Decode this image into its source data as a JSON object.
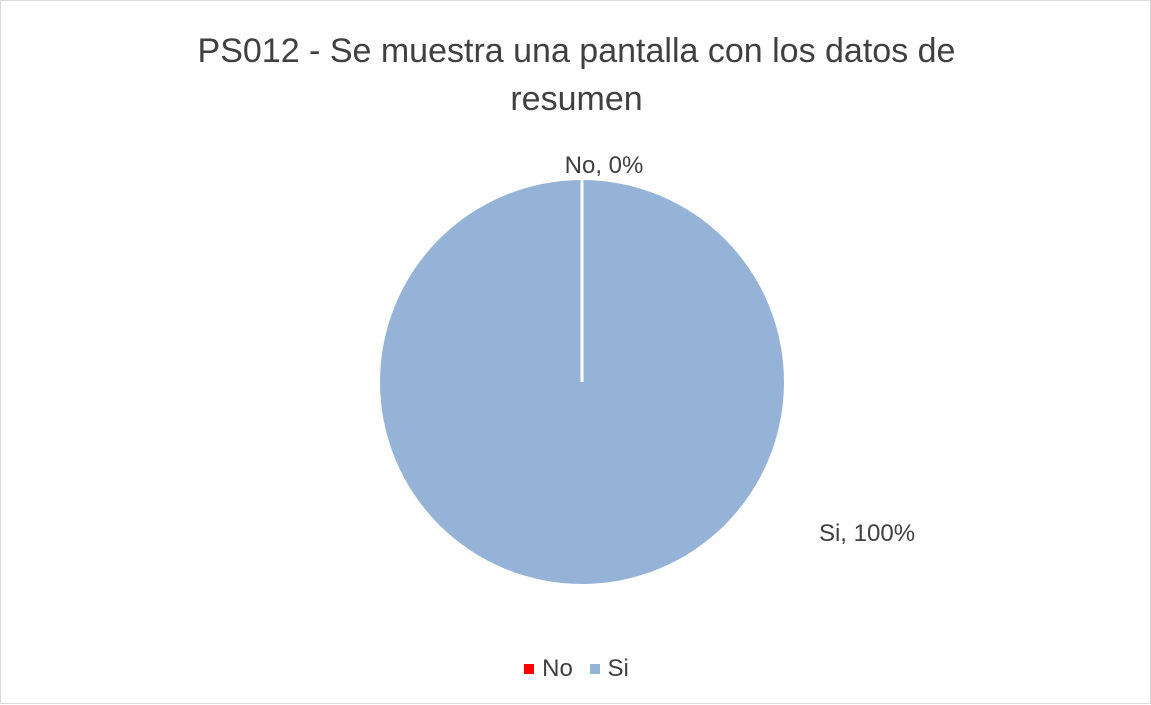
{
  "chart_data": {
    "type": "pie",
    "title_lines": [
      "PS012 - Se muestra una pantalla con los datos de",
      "resumen"
    ],
    "slices": [
      {
        "name": "No",
        "value": 0,
        "label": "No, 0%",
        "color": "#ff0000"
      },
      {
        "name": "Si",
        "value": 100,
        "label": "Si, 100%",
        "color": "#95b3d7"
      }
    ],
    "legend_position": "bottom",
    "legend": [
      {
        "name": "No",
        "color": "#ff0000"
      },
      {
        "name": "Si",
        "color": "#95b3d7"
      }
    ]
  }
}
